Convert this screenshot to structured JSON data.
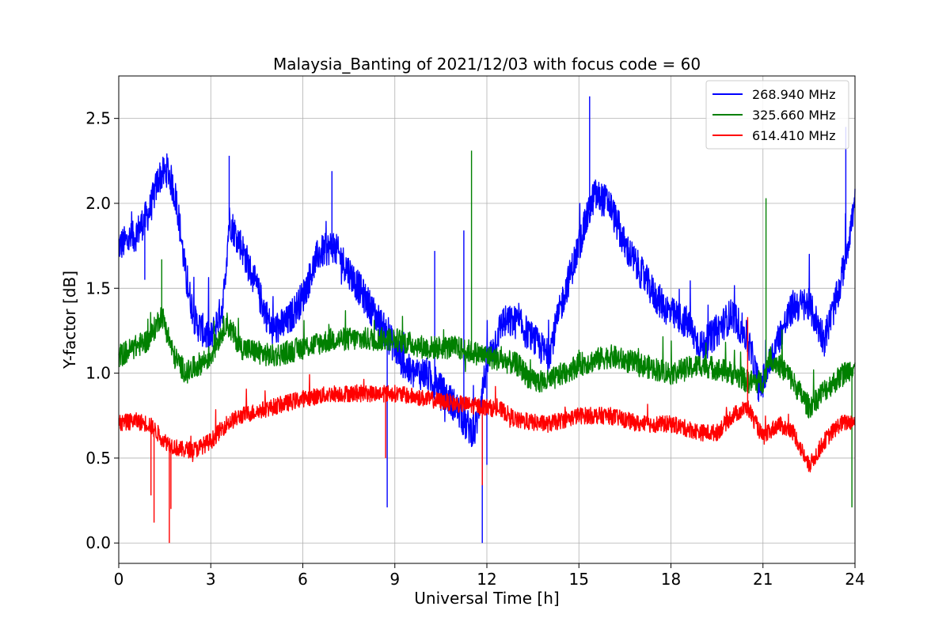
{
  "chart_data": {
    "type": "line",
    "title": "Malaysia_Banting of 2021/12/03 with focus code = 60",
    "xlabel": "Universal Time [h]",
    "ylabel": "Y-factor [dB]",
    "xlim": [
      0,
      24
    ],
    "ylim": [
      -0.12,
      2.75
    ],
    "xticks": [
      0,
      3,
      6,
      9,
      12,
      15,
      18,
      21,
      24
    ],
    "xtick_labels": [
      "0",
      "3",
      "6",
      "9",
      "12",
      "15",
      "18",
      "21",
      "24"
    ],
    "yticks": [
      0.0,
      0.5,
      1.0,
      1.5,
      2.0,
      2.5
    ],
    "ytick_labels": [
      "0.0",
      "0.5",
      "1.0",
      "1.5",
      "2.0",
      "2.5"
    ],
    "grid": true,
    "legend_position": "top-right",
    "series": [
      {
        "name": "268.940 MHz",
        "color": "#0000ff",
        "noise": 0.1,
        "x": [
          0,
          0.5,
          1.0,
          1.3,
          1.6,
          1.9,
          2.2,
          2.5,
          3.0,
          3.4,
          3.6,
          4.0,
          4.5,
          5.0,
          5.5,
          6.0,
          6.5,
          7.0,
          7.5,
          8.0,
          8.5,
          9.0,
          9.5,
          10.0,
          10.5,
          11.0,
          11.3,
          11.6,
          12.0,
          12.5,
          13.0,
          13.5,
          14.0,
          14.5,
          15.0,
          15.5,
          16.0,
          16.5,
          17.0,
          17.5,
          18.0,
          18.5,
          19.0,
          19.5,
          20.0,
          20.5,
          20.9,
          21.1,
          21.5,
          22.0,
          22.5,
          23.0,
          23.5,
          24.0
        ],
        "y": [
          1.75,
          1.8,
          1.95,
          2.15,
          2.2,
          2.0,
          1.55,
          1.3,
          1.2,
          1.4,
          1.9,
          1.75,
          1.5,
          1.25,
          1.3,
          1.45,
          1.7,
          1.75,
          1.6,
          1.45,
          1.3,
          1.15,
          1.0,
          1.0,
          0.9,
          0.8,
          0.7,
          0.65,
          1.05,
          1.3,
          1.3,
          1.2,
          1.1,
          1.45,
          1.75,
          2.05,
          2.0,
          1.75,
          1.6,
          1.45,
          1.35,
          1.3,
          1.15,
          1.25,
          1.35,
          1.2,
          0.9,
          1.0,
          1.2,
          1.4,
          1.4,
          1.2,
          1.5,
          2.0
        ]
      },
      {
        "name": "325.660 MHz",
        "color": "#008000",
        "noise": 0.07,
        "x": [
          0,
          0.5,
          1.0,
          1.4,
          1.8,
          2.2,
          2.6,
          3.0,
          3.5,
          4.0,
          5.0,
          6.0,
          7.0,
          8.0,
          9.0,
          10.0,
          11.0,
          12.0,
          13.0,
          13.5,
          14.0,
          15.0,
          16.0,
          17.0,
          18.0,
          19.0,
          20.0,
          20.5,
          21.0,
          21.2,
          21.8,
          22.5,
          23.0,
          24.0
        ],
        "y": [
          1.1,
          1.15,
          1.2,
          1.35,
          1.1,
          1.0,
          1.05,
          1.1,
          1.3,
          1.15,
          1.1,
          1.15,
          1.2,
          1.2,
          1.2,
          1.15,
          1.15,
          1.1,
          1.05,
          0.95,
          0.95,
          1.05,
          1.1,
          1.05,
          1.0,
          1.05,
          1.0,
          0.95,
          0.95,
          1.1,
          1.0,
          0.8,
          0.9,
          1.05
        ]
      },
      {
        "name": "614.410 MHz",
        "color": "#ff0000",
        "noise": 0.05,
        "x": [
          0,
          0.5,
          1.0,
          1.5,
          2.0,
          2.5,
          3.0,
          3.5,
          4.0,
          5.0,
          6.0,
          7.0,
          8.0,
          9.0,
          10.0,
          11.0,
          12.0,
          12.5,
          13.0,
          14.0,
          15.0,
          16.0,
          17.0,
          18.0,
          19.0,
          19.5,
          20.0,
          20.5,
          21.0,
          21.5,
          22.0,
          22.5,
          23.0,
          23.5,
          24.0
        ],
        "y": [
          0.7,
          0.72,
          0.7,
          0.6,
          0.55,
          0.55,
          0.6,
          0.7,
          0.75,
          0.8,
          0.85,
          0.88,
          0.88,
          0.88,
          0.85,
          0.82,
          0.8,
          0.78,
          0.72,
          0.7,
          0.75,
          0.75,
          0.7,
          0.7,
          0.65,
          0.65,
          0.75,
          0.8,
          0.62,
          0.7,
          0.65,
          0.45,
          0.6,
          0.7,
          0.72
        ]
      }
    ],
    "spikes": [
      {
        "series": 0,
        "x": 0.85,
        "y": 1.55
      },
      {
        "series": 0,
        "x": 3.6,
        "y": 2.28
      },
      {
        "series": 0,
        "x": 6.95,
        "y": 2.19
      },
      {
        "series": 0,
        "x": 8.75,
        "y": 0.21
      },
      {
        "series": 0,
        "x": 10.3,
        "y": 1.72
      },
      {
        "series": 0,
        "x": 11.25,
        "y": 1.84
      },
      {
        "series": 0,
        "x": 11.85,
        "y": 0.0
      },
      {
        "series": 0,
        "x": 12.0,
        "y": 0.46
      },
      {
        "series": 0,
        "x": 15.35,
        "y": 2.63
      },
      {
        "series": 0,
        "x": 23.7,
        "y": 2.45
      },
      {
        "series": 1,
        "x": 1.4,
        "y": 1.67
      },
      {
        "series": 1,
        "x": 11.5,
        "y": 2.31
      },
      {
        "series": 1,
        "x": 21.1,
        "y": 2.03
      },
      {
        "series": 1,
        "x": 23.9,
        "y": 0.21
      },
      {
        "series": 2,
        "x": 1.05,
        "y": 0.28
      },
      {
        "series": 2,
        "x": 1.15,
        "y": 0.12
      },
      {
        "series": 2,
        "x": 1.65,
        "y": 0.0
      },
      {
        "series": 2,
        "x": 1.7,
        "y": 0.2
      },
      {
        "series": 2,
        "x": 8.7,
        "y": 0.5
      },
      {
        "series": 2,
        "x": 11.85,
        "y": 0.34
      },
      {
        "series": 2,
        "x": 20.5,
        "y": 1.33
      }
    ]
  }
}
